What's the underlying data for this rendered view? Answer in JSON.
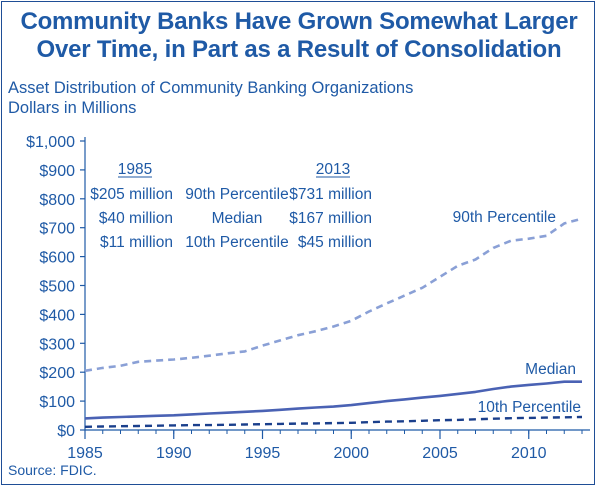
{
  "title_line1": "Community Banks Have Grown Somewhat Larger",
  "title_line2": "Over Time, in Part as a Result of Consolidation",
  "subtitle_line1": "Asset Distribution of Community Banking Organizations",
  "subtitle_line2": "Dollars in Millions",
  "source": "Source: FDIC.",
  "colors": {
    "title": "#1f5aa6",
    "p90": "#8aa0d6",
    "median": "#4a62b4",
    "p10": "#1a3f8c",
    "axis": "#1f5aa6",
    "text": "#1f5aa6",
    "frame": "#1f4e96"
  },
  "table": {
    "header_1985": "1985",
    "header_2013": "2013",
    "rows": [
      {
        "v1985": "$205 million",
        "label": "90th Percentile",
        "v2013": "$731 million"
      },
      {
        "v1985": "$40 million",
        "label": "Median",
        "v2013": "$167 million"
      },
      {
        "v1985": "$11 million",
        "label": "10th Percentile",
        "v2013": "$45 million"
      }
    ]
  },
  "chart_data": {
    "type": "line",
    "xlim": [
      1985,
      2013
    ],
    "ylim": [
      0,
      1000
    ],
    "grid": false,
    "x_ticks": [
      1985,
      1990,
      1995,
      2000,
      2005,
      2010
    ],
    "x_tick_labels": [
      "1985",
      "1990",
      "1995",
      "2000",
      "2005",
      "2010"
    ],
    "y_ticks": [
      0,
      100,
      200,
      300,
      400,
      500,
      600,
      700,
      800,
      900,
      1000
    ],
    "y_tick_labels": [
      "$0",
      "$100",
      "$200",
      "$300",
      "$400",
      "$500",
      "$600",
      "$700",
      "$800",
      "$900",
      "$1,000"
    ],
    "x": [
      1985,
      1986,
      1987,
      1988,
      1989,
      1990,
      1991,
      1992,
      1993,
      1994,
      1995,
      1996,
      1997,
      1998,
      1999,
      2000,
      2001,
      2002,
      2003,
      2004,
      2005,
      2006,
      2007,
      2008,
      2009,
      2010,
      2011,
      2012,
      2013
    ],
    "series": [
      {
        "name": "90th Percentile",
        "style": "dashed",
        "values": [
          205,
          215,
          222,
          236,
          240,
          244,
          250,
          257,
          265,
          272,
          292,
          310,
          328,
          342,
          358,
          378,
          410,
          438,
          465,
          492,
          530,
          568,
          590,
          630,
          655,
          662,
          672,
          715,
          731
        ]
      },
      {
        "name": "Median",
        "style": "solid",
        "values": [
          40,
          43,
          45,
          47,
          49,
          51,
          54,
          57,
          60,
          63,
          66,
          70,
          74,
          78,
          81,
          86,
          93,
          100,
          106,
          112,
          118,
          125,
          132,
          142,
          150,
          156,
          161,
          167,
          167
        ]
      },
      {
        "name": "10th Percentile",
        "style": "dashed",
        "values": [
          11,
          12,
          13,
          14,
          15,
          16,
          17,
          17,
          18,
          19,
          20,
          21,
          22,
          23,
          24,
          25,
          27,
          29,
          30,
          32,
          34,
          35,
          37,
          39,
          41,
          42,
          43,
          44,
          45
        ]
      }
    ]
  }
}
